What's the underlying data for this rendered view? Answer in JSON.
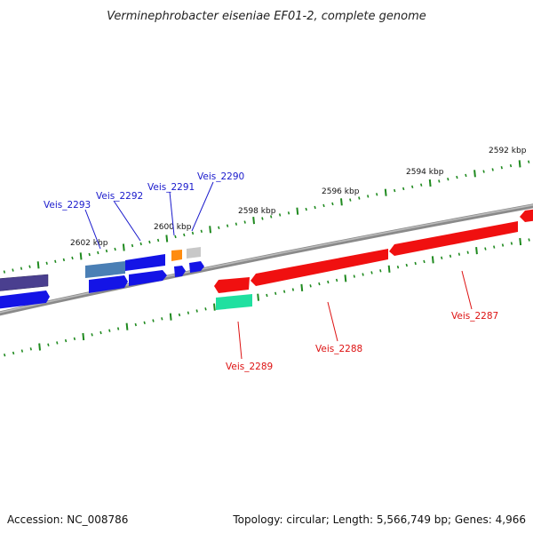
{
  "title": "Verminephrobacter eiseniae EF01-2, complete genome",
  "footer": {
    "accession": "Accession: NC_008786",
    "summary": "Topology: circular; Length: 5,566,749 bp; Genes: 4,966"
  },
  "colors": {
    "backbone": "#7a7a7a",
    "tick": "#1f8a1f",
    "forward_label": "#1a1acc",
    "reverse_label": "#dd1111",
    "blue": "#1414e6",
    "steel": "#4a7fb5",
    "navy": "#4a3f8f",
    "red": "#f01010",
    "teal": "#20e0a0",
    "orange": "#ff8c10",
    "grey": "#c8c8c8"
  },
  "kbp_markers": [
    "2592 kbp",
    "2594 kbp",
    "2596 kbp",
    "2598 kbp",
    "2600 kbp",
    "2602 kbp"
  ],
  "gene_labels": {
    "forward": [
      "Veis_2293",
      "Veis_2292",
      "Veis_2291",
      "Veis_2290"
    ],
    "reverse": [
      "Veis_2289",
      "Veis_2288",
      "Veis_2287"
    ]
  }
}
